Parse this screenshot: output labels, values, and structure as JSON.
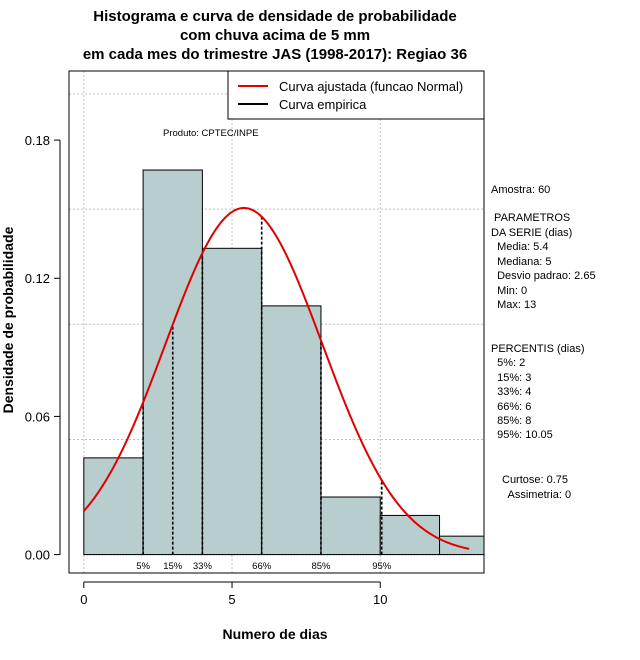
{
  "chart_data": {
    "type": "bar",
    "title_lines": [
      "Histograma e curva de densidade de probabilidade",
      "com chuva acima de 5 mm",
      "em cada mes do trimestre JAS (1998-2017): Regiao 36"
    ],
    "xlabel": "Numero de dias",
    "ylabel": "Densidade de probabilidade",
    "xlim": [
      -0.5,
      13.5
    ],
    "ylim": [
      -0.008,
      0.21
    ],
    "x_ticks": [
      "0",
      "5",
      "10"
    ],
    "x_tick_values": [
      0,
      5,
      10
    ],
    "y_ticks": [
      "0.00",
      "0.06",
      "0.12",
      "0.18"
    ],
    "y_tick_values": [
      0.0,
      0.06,
      0.12,
      0.18
    ],
    "grid": true,
    "bins": [
      {
        "x0": 0,
        "x1": 2,
        "density": 0.042
      },
      {
        "x0": 2,
        "x1": 4,
        "density": 0.167
      },
      {
        "x0": 4,
        "x1": 6,
        "density": 0.133
      },
      {
        "x0": 6,
        "x1": 8,
        "density": 0.108
      },
      {
        "x0": 8,
        "x1": 10,
        "density": 0.025
      },
      {
        "x0": 10,
        "x1": 12,
        "density": 0.017
      },
      {
        "x0": 12,
        "x1": 14,
        "density": 0.008
      }
    ],
    "normal_curve": {
      "mean": 5.4,
      "sd": 2.65,
      "x_from": 0,
      "x_to": 13
    },
    "percentile_lines": [
      {
        "label": "5%",
        "x": 2
      },
      {
        "label": "15%",
        "x": 3
      },
      {
        "label": "33%",
        "x": 4
      },
      {
        "label": "66%",
        "x": 6
      },
      {
        "label": "85%",
        "x": 8
      },
      {
        "label": "95%",
        "x": 10.05
      }
    ],
    "legend": [
      {
        "label": "Curva ajustada (funcao Normal)",
        "color": "#e00000"
      },
      {
        "label": "Curva empirica",
        "color": "#000000"
      }
    ],
    "legend_position": "top-right",
    "annotation": "Produto: CPTEC/INPE",
    "colors": {
      "bar_fill": "#b8cdcd",
      "bar_stroke": "#000000",
      "curve": "#e00000",
      "grid": "#c0c0c0"
    }
  },
  "side_panel": [
    "Amostra: 60",
    " PARAMETROS",
    "DA SERIE (dias)",
    "  Media: 5.4",
    "  Mediana: 5",
    "  Desvio padrao: 2.65",
    "  Min: 0",
    "  Max: 13",
    "PERCENTIS (dias)",
    "  5%: 2",
    "  15%: 3",
    "  33%: 4",
    "  66%: 6",
    "  85%: 8",
    "  95%: 10.05",
    "Curtose: 0.75",
    "  Assimetria: 0"
  ]
}
